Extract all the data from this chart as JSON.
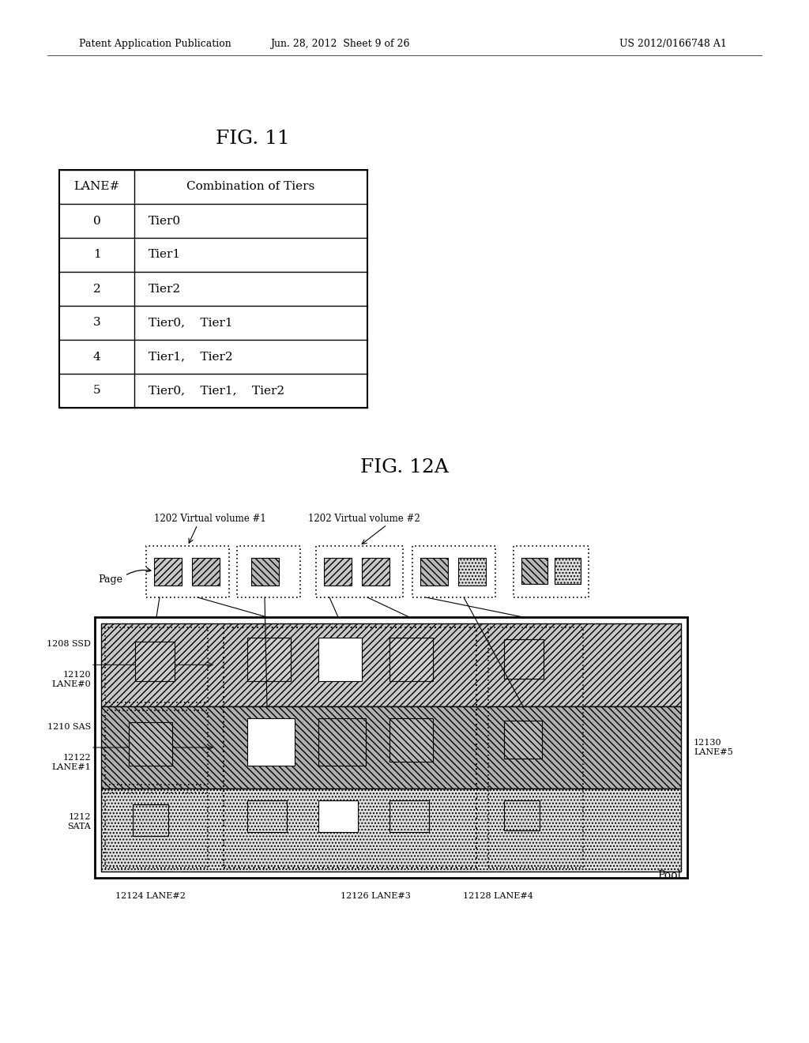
{
  "header_text_left": "Patent Application Publication",
  "header_text_mid": "Jun. 28, 2012  Sheet 9 of 26",
  "header_text_right": "US 2012/0166748 A1",
  "fig11_title": "FIG. 11",
  "fig12a_title": "FIG. 12A",
  "table_headers": [
    "LANE#",
    "Combination of Tiers"
  ],
  "table_rows": [
    [
      "0",
      "Tier0"
    ],
    [
      "1",
      "Tier1"
    ],
    [
      "2",
      "Tier2"
    ],
    [
      "3",
      "Tier0,    Tier1"
    ],
    [
      "4",
      "Tier1,    Tier2"
    ],
    [
      "5",
      "Tier0,    Tier1,    Tier2"
    ]
  ],
  "bg_color": "#ffffff",
  "text_color": "#000000"
}
